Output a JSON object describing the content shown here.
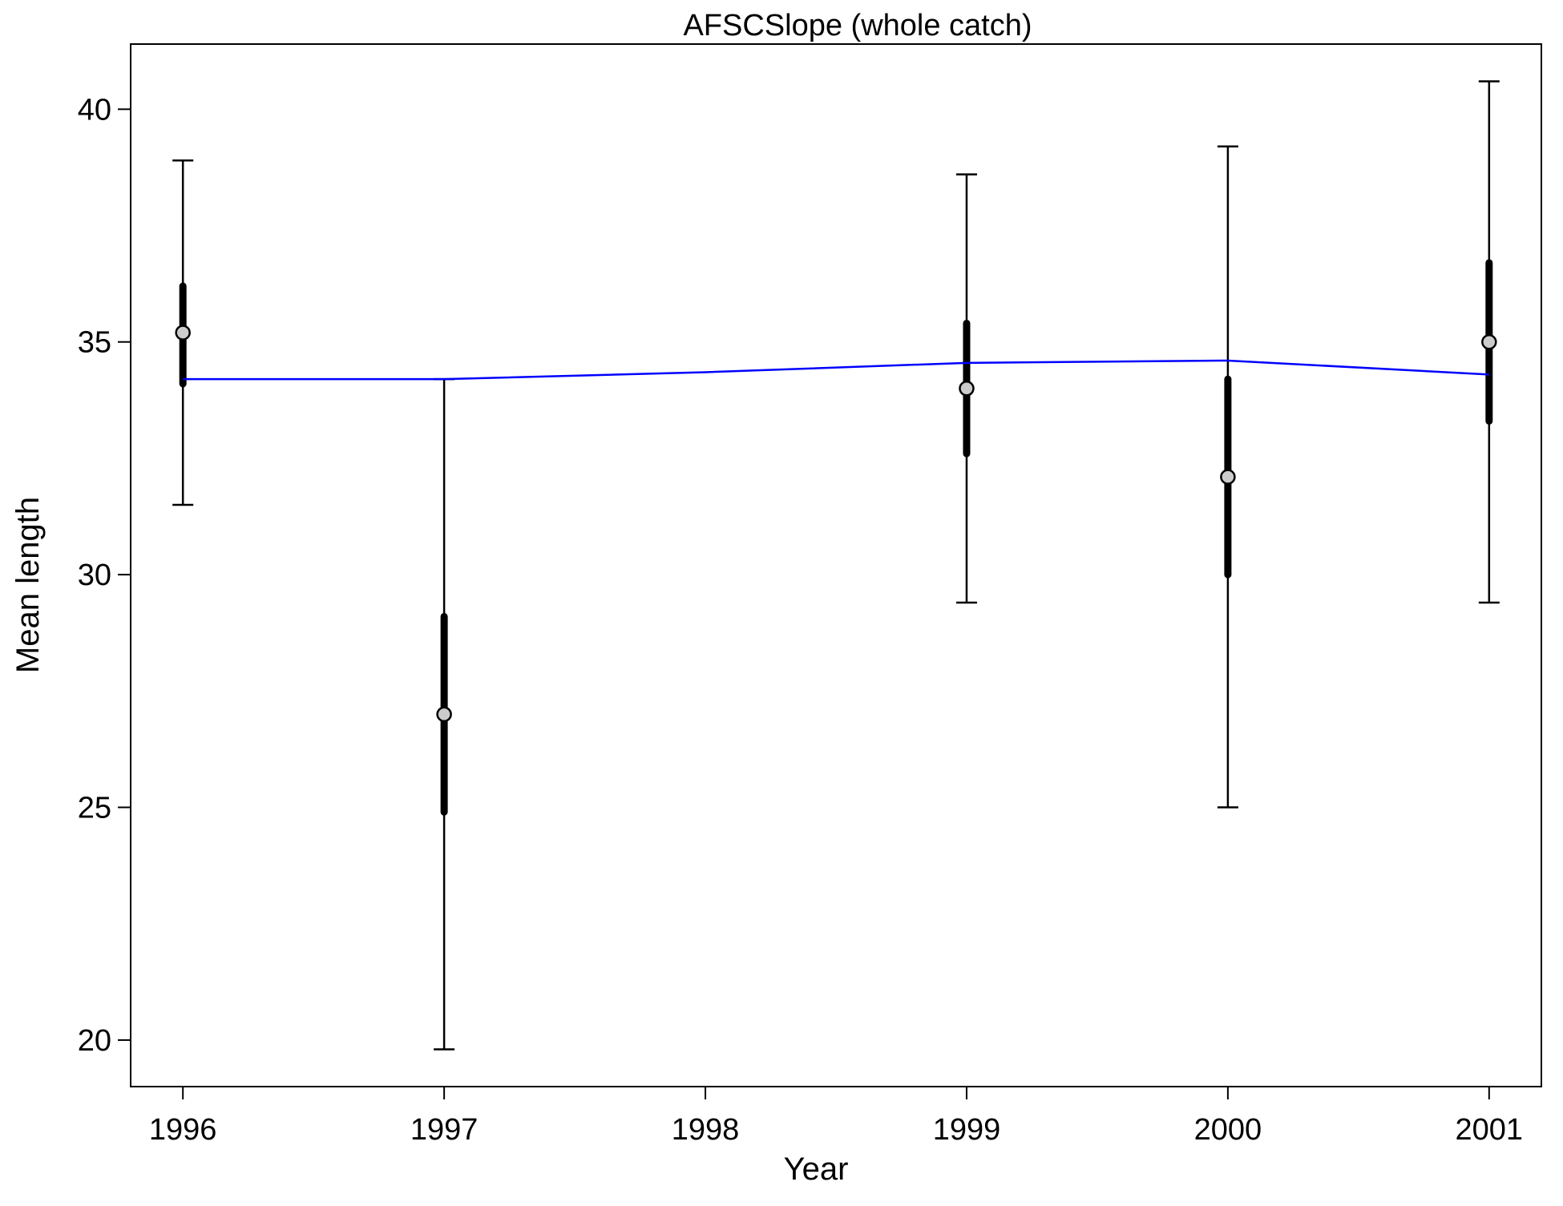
{
  "chart_data": {
    "type": "scatter",
    "title": "AFSCSlope (whole catch)",
    "xlabel": "Year",
    "ylabel": "Mean length",
    "xlim": [
      1995.8,
      2001.2
    ],
    "ylim": [
      19.0,
      41.4
    ],
    "x_ticks": [
      "1996",
      "1997",
      "1998",
      "1999",
      "2000",
      "2001"
    ],
    "y_ticks": [
      "20",
      "25",
      "30",
      "35",
      "40"
    ],
    "grid": false,
    "observed": {
      "x": [
        1996,
        1997,
        1999,
        2000,
        2001
      ],
      "mean": [
        35.2,
        27.0,
        34.0,
        32.1,
        35.0
      ],
      "inner_ci_low": [
        34.1,
        24.9,
        32.6,
        30.0,
        33.3
      ],
      "inner_ci_high": [
        36.2,
        29.1,
        35.4,
        34.2,
        36.7
      ],
      "outer_ci_low": [
        31.5,
        19.8,
        29.4,
        25.0,
        29.4
      ],
      "outer_ci_high": [
        38.9,
        34.2,
        38.6,
        39.2,
        40.6
      ],
      "point_fill": "#cccccc"
    },
    "expected": {
      "x": [
        1996,
        1997,
        1998,
        1999,
        2000,
        2001
      ],
      "y": [
        34.2,
        34.2,
        34.35,
        34.55,
        34.6,
        34.3
      ],
      "color": "#0000ff"
    }
  }
}
